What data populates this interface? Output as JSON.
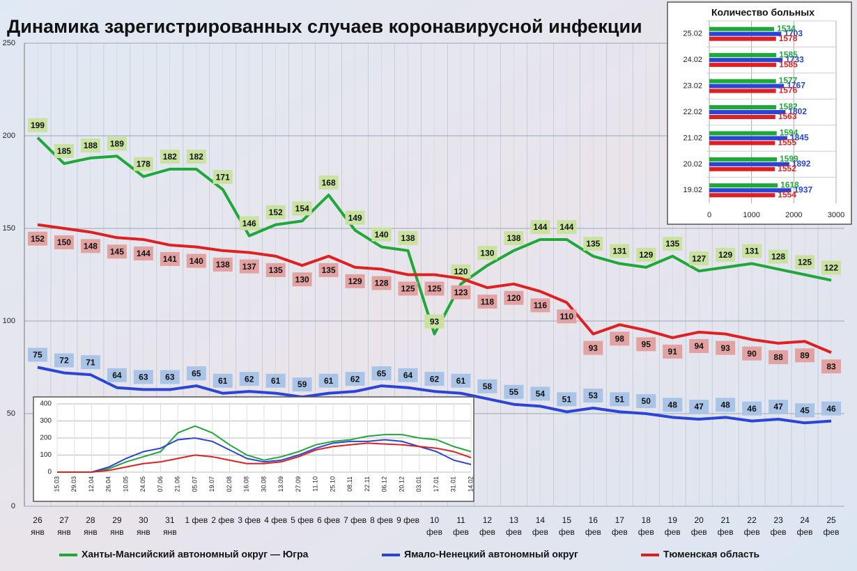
{
  "chart_data": [
    {
      "type": "line",
      "title": "Динамика зарегистрированных случаев коронавирусной инфекции",
      "categories": [
        "26\nянв",
        "27\nянв",
        "28\nянв",
        "29\nянв",
        "30\nянв",
        "31\nянв",
        "1 фев",
        "2 фев",
        "3 фев",
        "4 фев",
        "5 фев",
        "6 фев",
        "7 фев",
        "8 фев",
        "9 фев",
        "10\nфев",
        "11\nфев",
        "12\nфев",
        "13\nфев",
        "14\nфев",
        "15\nфев",
        "16\nфев",
        "17\nфев",
        "18\nфев",
        "19\nфев",
        "20\nфев",
        "21\nфев",
        "22\nфев",
        "23\nфев",
        "24\nфев",
        "25\nфев"
      ],
      "series": [
        {
          "name": "Ханты-Мансийский автономный округ — Югра",
          "color": "#1fa83a",
          "values": [
            199,
            185,
            188,
            189,
            178,
            182,
            182,
            171,
            146,
            152,
            154,
            168,
            149,
            140,
            138,
            93,
            120,
            130,
            138,
            144,
            144,
            135,
            131,
            129,
            135,
            127,
            129,
            131,
            128,
            125,
            122
          ]
        },
        {
          "name": "Ямало-Ненецкий автономный округ",
          "color": "#2a44d8",
          "values": [
            75,
            72,
            71,
            64,
            63,
            63,
            65,
            61,
            62,
            61,
            59,
            61,
            62,
            65,
            64,
            62,
            61,
            58,
            55,
            54,
            51,
            53,
            51,
            50,
            48,
            47,
            48,
            46,
            47,
            45,
            46
          ]
        },
        {
          "name": "Тюменская область",
          "color": "#e02020",
          "values": [
            152,
            150,
            148,
            145,
            144,
            141,
            140,
            138,
            137,
            135,
            130,
            135,
            129,
            128,
            125,
            125,
            123,
            118,
            120,
            116,
            110,
            93,
            98,
            95,
            91,
            94,
            93,
            90,
            88,
            89,
            83
          ]
        }
      ],
      "ylim": [
        0,
        250
      ],
      "yticks": [
        0,
        50,
        100,
        150,
        200,
        250
      ],
      "grid": true,
      "legend": "bottom"
    },
    {
      "type": "hbar",
      "title": "Количество больных",
      "categories": [
        "25.02",
        "24.02",
        "23.02",
        "22.02",
        "21.02",
        "20.02",
        "19.02"
      ],
      "series": [
        {
          "color": "#1fa83a",
          "values": [
            1534,
            1585,
            1577,
            1582,
            1594,
            1599,
            1618
          ]
        },
        {
          "color": "#2a44d8",
          "values": [
            1703,
            1733,
            1767,
            1802,
            1845,
            1892,
            1937
          ]
        },
        {
          "color": "#e02020",
          "values": [
            1578,
            1585,
            1576,
            1563,
            1555,
            1552,
            1554
          ]
        }
      ],
      "xlim": [
        0,
        3000
      ],
      "xticks": [
        0,
        1000,
        2000,
        3000
      ],
      "grid": true
    },
    {
      "type": "line-small",
      "categories": [
        "15.03",
        "29.03",
        "12.04",
        "26.04",
        "10.05",
        "24.05",
        "07.06",
        "21.06",
        "05.07",
        "19.07",
        "02.08",
        "16.08",
        "30.08",
        "13.09",
        "27.09",
        "11.10",
        "25.10",
        "08.11",
        "22.11",
        "06.12",
        "20.12",
        "03.01",
        "17.01",
        "31.01",
        "14.02"
      ],
      "series": [
        {
          "color": "#1fa83a",
          "values": [
            0,
            0,
            0,
            20,
            60,
            90,
            120,
            230,
            270,
            230,
            160,
            100,
            70,
            90,
            120,
            160,
            180,
            190,
            210,
            220,
            220,
            200,
            190,
            150,
            120
          ]
        },
        {
          "color": "#2a44d8",
          "values": [
            0,
            0,
            0,
            30,
            80,
            120,
            140,
            190,
            200,
            180,
            130,
            80,
            60,
            70,
            100,
            140,
            170,
            180,
            180,
            190,
            180,
            150,
            120,
            70,
            45
          ]
        },
        {
          "color": "#e02020",
          "values": [
            0,
            0,
            0,
            10,
            30,
            50,
            60,
            80,
            100,
            90,
            70,
            50,
            50,
            60,
            90,
            130,
            150,
            160,
            170,
            165,
            160,
            150,
            140,
            120,
            85
          ]
        }
      ],
      "ylim": [
        0,
        400
      ],
      "yticks": [
        0,
        100,
        200,
        300,
        400
      ],
      "grid": true
    }
  ]
}
